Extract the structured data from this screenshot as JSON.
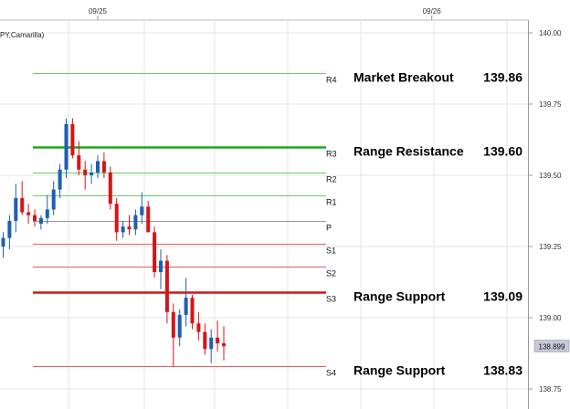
{
  "indicator_label": "PY,Camarilla)",
  "colors": {
    "up_candle": "#1e5fb4",
    "down_candle": "#d41616",
    "resistance": "#1ea51e",
    "resistance_light": "#66cc66",
    "support": "#d41616",
    "support_light": "#e06060",
    "pivot": "#999999",
    "current_price_badge": "#c8c8d8",
    "grid": "#e6e6e6"
  },
  "chart_data": {
    "type": "candlestick",
    "title": "",
    "x_ticks": [
      {
        "label": "09/25",
        "index": 15
      },
      {
        "label": "09/26",
        "index": 68
      }
    ],
    "ylim": [
      138.7,
      140.02
    ],
    "y_ticks": [
      "140.00",
      "139.75",
      "139.50",
      "139.25",
      "139.00",
      "138.75"
    ],
    "current_price": "138.899",
    "levels": [
      {
        "id": "R4",
        "value": 139.86,
        "annotation": "Market Breakout",
        "value_label": "139.86",
        "style": "resistance_light",
        "weight": "thin"
      },
      {
        "id": "R3",
        "value": 139.6,
        "annotation": "Range Resistance",
        "value_label": "139.60",
        "style": "resistance",
        "weight": "bold"
      },
      {
        "id": "R2",
        "value": 139.51,
        "annotation": "",
        "value_label": "",
        "style": "resistance_light",
        "weight": "thin"
      },
      {
        "id": "R1",
        "value": 139.43,
        "annotation": "",
        "value_label": "",
        "style": "resistance_light",
        "weight": "thin"
      },
      {
        "id": "P",
        "value": 139.34,
        "annotation": "",
        "value_label": "",
        "style": "pivot",
        "weight": "thin"
      },
      {
        "id": "S1",
        "value": 139.26,
        "annotation": "",
        "value_label": "",
        "style": "support_light",
        "weight": "thin"
      },
      {
        "id": "S2",
        "value": 139.18,
        "annotation": "",
        "value_label": "",
        "style": "support_light",
        "weight": "thin"
      },
      {
        "id": "S3",
        "value": 139.09,
        "annotation": "Range Support",
        "value_label": "139.09",
        "style": "support",
        "weight": "bold"
      },
      {
        "id": "S4",
        "value": 138.83,
        "annotation": "Range Support",
        "value_label": "138.83",
        "style": "support_light",
        "weight": "thin"
      }
    ],
    "candles": [
      {
        "o": 139.25,
        "h": 139.3,
        "l": 139.21,
        "c": 139.28
      },
      {
        "o": 139.28,
        "h": 139.36,
        "l": 139.24,
        "c": 139.34
      },
      {
        "o": 139.34,
        "h": 139.47,
        "l": 139.3,
        "c": 139.42
      },
      {
        "o": 139.42,
        "h": 139.48,
        "l": 139.36,
        "c": 139.37
      },
      {
        "o": 139.37,
        "h": 139.4,
        "l": 139.33,
        "c": 139.36
      },
      {
        "o": 139.36,
        "h": 139.38,
        "l": 139.32,
        "c": 139.34
      },
      {
        "o": 139.33,
        "h": 139.36,
        "l": 139.31,
        "c": 139.35
      },
      {
        "o": 139.35,
        "h": 139.43,
        "l": 139.33,
        "c": 139.38
      },
      {
        "o": 139.38,
        "h": 139.48,
        "l": 139.36,
        "c": 139.45
      },
      {
        "o": 139.45,
        "h": 139.54,
        "l": 139.42,
        "c": 139.52
      },
      {
        "o": 139.52,
        "h": 139.7,
        "l": 139.49,
        "c": 139.68
      },
      {
        "o": 139.68,
        "h": 139.7,
        "l": 139.56,
        "c": 139.57
      },
      {
        "o": 139.57,
        "h": 139.62,
        "l": 139.5,
        "c": 139.52
      },
      {
        "o": 139.52,
        "h": 139.55,
        "l": 139.45,
        "c": 139.5
      },
      {
        "o": 139.5,
        "h": 139.54,
        "l": 139.47,
        "c": 139.51
      },
      {
        "o": 139.51,
        "h": 139.57,
        "l": 139.49,
        "c": 139.55
      },
      {
        "o": 139.55,
        "h": 139.58,
        "l": 139.49,
        "c": 139.51
      },
      {
        "o": 139.51,
        "h": 139.53,
        "l": 139.38,
        "c": 139.4
      },
      {
        "o": 139.4,
        "h": 139.42,
        "l": 139.27,
        "c": 139.3
      },
      {
        "o": 139.3,
        "h": 139.34,
        "l": 139.28,
        "c": 139.32
      },
      {
        "o": 139.32,
        "h": 139.36,
        "l": 139.29,
        "c": 139.31
      },
      {
        "o": 139.31,
        "h": 139.38,
        "l": 139.29,
        "c": 139.36
      },
      {
        "o": 139.36,
        "h": 139.44,
        "l": 139.33,
        "c": 139.39
      },
      {
        "o": 139.39,
        "h": 139.41,
        "l": 139.3,
        "c": 139.3
      },
      {
        "o": 139.3,
        "h": 139.32,
        "l": 139.14,
        "c": 139.16
      },
      {
        "o": 139.16,
        "h": 139.24,
        "l": 139.1,
        "c": 139.2
      },
      {
        "o": 139.2,
        "h": 139.22,
        "l": 138.98,
        "c": 139.02
      },
      {
        "o": 139.02,
        "h": 139.05,
        "l": 138.83,
        "c": 138.93
      },
      {
        "o": 138.93,
        "h": 139.03,
        "l": 138.9,
        "c": 139.01
      },
      {
        "o": 139.01,
        "h": 139.14,
        "l": 138.97,
        "c": 139.07
      },
      {
        "o": 139.07,
        "h": 139.08,
        "l": 138.96,
        "c": 138.98
      },
      {
        "o": 138.98,
        "h": 139.02,
        "l": 138.92,
        "c": 138.95
      },
      {
        "o": 138.95,
        "h": 138.98,
        "l": 138.87,
        "c": 138.89
      },
      {
        "o": 138.89,
        "h": 138.96,
        "l": 138.84,
        "c": 138.93
      },
      {
        "o": 138.93,
        "h": 138.99,
        "l": 138.88,
        "c": 138.91
      },
      {
        "o": 138.91,
        "h": 138.97,
        "l": 138.85,
        "c": 138.9
      }
    ]
  }
}
